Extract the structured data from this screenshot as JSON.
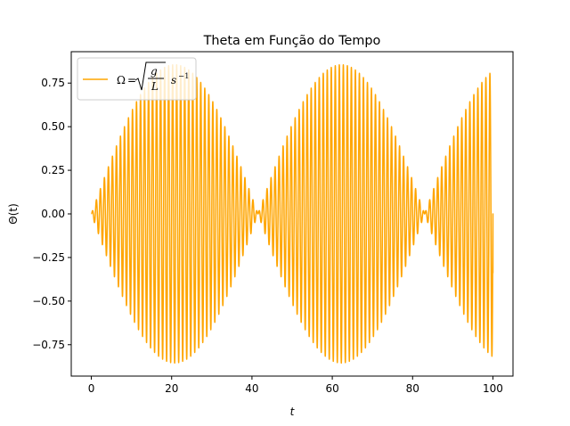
{
  "chart_data": {
    "type": "line",
    "title": "Theta em Função do Tempo",
    "xlabel": "t",
    "ylabel": "Θ(t)",
    "xlim": [
      -5,
      105
    ],
    "ylim": [
      -0.93,
      0.93
    ],
    "xticks": [
      0,
      20,
      40,
      60,
      80,
      100
    ],
    "xtick_labels": [
      "0",
      "20",
      "40",
      "60",
      "80",
      "100"
    ],
    "yticks": [
      -0.75,
      -0.5,
      -0.25,
      0.0,
      0.25,
      0.5,
      0.75
    ],
    "ytick_labels": [
      "−0.75",
      "−0.50",
      "−0.25",
      "0.00",
      "0.25",
      "0.50",
      "0.75"
    ],
    "grid": false,
    "legend_position": "top-left",
    "series": [
      {
        "name": "Ω = √(g/L) s⁻¹",
        "legend_parts": {
          "lhs": "Ω",
          "eq": "=",
          "num": "g",
          "den": "L",
          "unit": "s",
          "exp": "−1"
        },
        "color": "#ffa500",
        "x_start": 0,
        "x_end": 100,
        "amplitude": 0.855,
        "envelope_period": 41.5,
        "carrier_period": 1.0,
        "end_value": -0.34
      }
    ]
  }
}
